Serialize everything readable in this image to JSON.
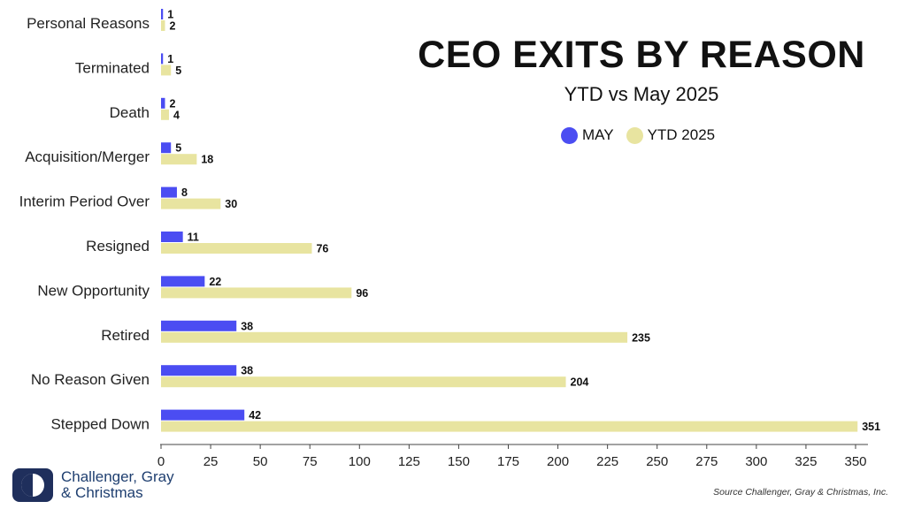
{
  "title": "CEO EXITS BY REASON",
  "subtitle": "YTD vs May 2025",
  "legend": [
    {
      "name": "MAY",
      "color": "#4b4df2"
    },
    {
      "name": "YTD 2025",
      "color": "#e8e4a0"
    }
  ],
  "logo": {
    "line1": "Challenger, Gray",
    "line2": "& Christmas",
    "icon": "half-moon-logo-icon"
  },
  "source": "Source Challenger, Gray & Christmas, Inc.",
  "chart_data": {
    "type": "bar",
    "orientation": "horizontal",
    "title": "CEO EXITS BY REASON",
    "subtitle": "YTD vs May 2025",
    "categories": [
      "Personal Reasons",
      "Terminated",
      "Death",
      "Acquisition/Merger",
      "Interim Period Over",
      "Resigned",
      "New Opportunity",
      "Retired",
      "No Reason Given",
      "Stepped Down"
    ],
    "series": [
      {
        "name": "MAY",
        "color": "#4b4df2",
        "values": [
          1,
          1,
          2,
          5,
          8,
          11,
          22,
          38,
          38,
          42
        ]
      },
      {
        "name": "YTD 2025",
        "color": "#e8e4a0",
        "values": [
          2,
          5,
          4,
          18,
          30,
          76,
          96,
          235,
          204,
          351
        ]
      }
    ],
    "xlim": [
      0,
      350
    ],
    "xticks": [
      0,
      25,
      50,
      75,
      100,
      125,
      150,
      175,
      200,
      225,
      250,
      275,
      300,
      325,
      350
    ],
    "data_labels": true,
    "grid": false,
    "legend_position": "top-right"
  }
}
